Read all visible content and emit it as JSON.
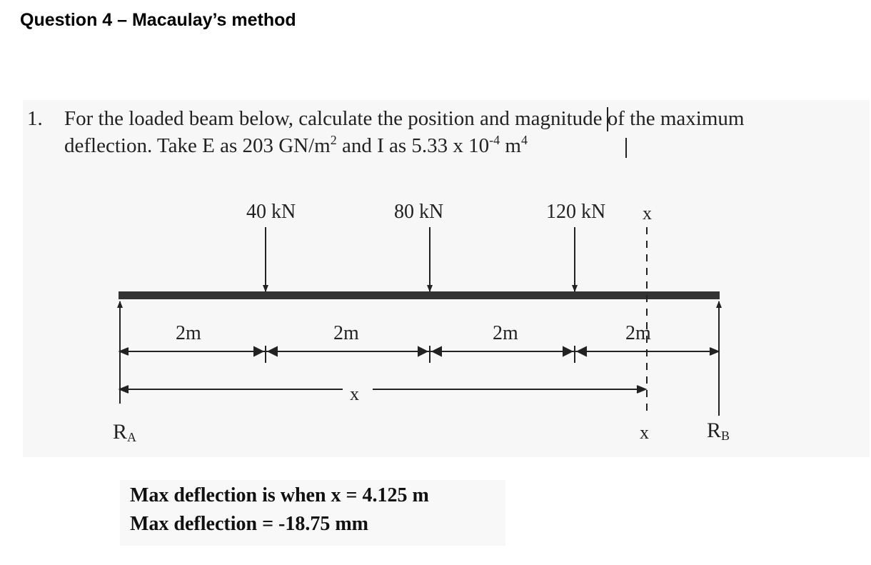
{
  "heading": "Question 4 – Macaulay’s method",
  "question": {
    "number": "1.",
    "line1": "For the loaded beam below, calculate the position and magnitude of the maximum",
    "line2_prefix": "deflection.  Take E as 203 GN/m",
    "line2_sup1": "2",
    "line2_mid": " and I as 5.33 x 10",
    "line2_sup2": "-4",
    "line2_unit": " m",
    "line2_sup3": "4"
  },
  "diagram": {
    "loads": [
      {
        "label": "40 kN",
        "position_m": 2
      },
      {
        "label": "80 kN",
        "position_m": 4
      },
      {
        "label": "120 kN",
        "position_m": 6
      }
    ],
    "spans": [
      "2m",
      "2m",
      "2m",
      "2m"
    ],
    "section_label_top": "x",
    "section_label_bottom": "x",
    "distance_label": "x",
    "reaction_a_main": "R",
    "reaction_a_sub": "A",
    "reaction_b_main": "R",
    "reaction_b_sub": "B"
  },
  "answer": {
    "line1": "Max deflection is when  x = 4.125 m",
    "line2": "Max deflection = -18.75 mm"
  },
  "colors": {
    "beam": "#333333",
    "ink": "#222222"
  }
}
